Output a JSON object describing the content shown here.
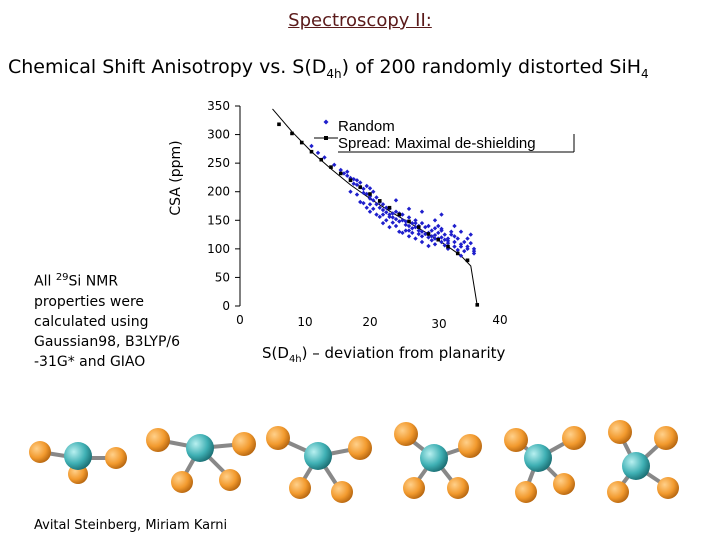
{
  "slide": {
    "title": "Spectroscopy II:",
    "subtitle_pre": "Chemical Shift Anisotropy vs. S(D",
    "subtitle_sub": "4h",
    "subtitle_mid": ") of 200 randomly distorted SiH",
    "subtitle_sub2": "4",
    "note_lines": [
      "All",
      "29",
      "Si NMR",
      "properties were",
      "calculated using",
      "Gaussian98, B3LYP/6",
      "-31G* and GIAO"
    ],
    "xlabel_pre": "S(D",
    "xlabel_sub": "4h",
    "xlabel_post": ") – deviation from planarity",
    "footer": "Avital Steinberg, Miriam Karni"
  },
  "chart_data": {
    "type": "scatter",
    "ylabel": "CSA (ppm)",
    "xlabel": "S(D4h) – deviation from planarity",
    "yticks": [
      0,
      50,
      100,
      150,
      200,
      250,
      300,
      350
    ],
    "xticks": [
      0,
      10,
      20,
      30,
      40
    ],
    "ylim": [
      0,
      350
    ],
    "xlim": [
      0,
      40
    ],
    "grid": false,
    "legend_position": "top-right",
    "colors": {
      "random": "#1f1fcc",
      "maximal": "#000000",
      "axis": "#000000"
    },
    "series": [
      {
        "name": "Random",
        "marker": "diamond",
        "color": "#1f1fcc",
        "points": [
          [
            14.5,
            247
          ],
          [
            15.5,
            238
          ],
          [
            16,
            232
          ],
          [
            16.5,
            235
          ],
          [
            17,
            224
          ],
          [
            17.5,
            222
          ],
          [
            17.5,
            214
          ],
          [
            18,
            220
          ],
          [
            18,
            212
          ],
          [
            18.5,
            208
          ],
          [
            18.5,
            216
          ],
          [
            19,
            205
          ],
          [
            19,
            198
          ],
          [
            19.5,
            210
          ],
          [
            19.5,
            196
          ],
          [
            20,
            206
          ],
          [
            20,
            192
          ],
          [
            20,
            188
          ],
          [
            20.5,
            200
          ],
          [
            20.5,
            185
          ],
          [
            21,
            178
          ],
          [
            21,
            190
          ],
          [
            21.5,
            182
          ],
          [
            21.5,
            172
          ],
          [
            22,
            178
          ],
          [
            22,
            168
          ],
          [
            22.5,
            172
          ],
          [
            22.5,
            164
          ],
          [
            23,
            170
          ],
          [
            23,
            160
          ],
          [
            23.5,
            162
          ],
          [
            23.5,
            155
          ],
          [
            24,
            165
          ],
          [
            24,
            152
          ],
          [
            24.5,
            158
          ],
          [
            24.5,
            148
          ],
          [
            25,
            160
          ],
          [
            25,
            150
          ],
          [
            25.5,
            148
          ],
          [
            25.5,
            142
          ],
          [
            26,
            155
          ],
          [
            26,
            140
          ],
          [
            26.5,
            145
          ],
          [
            26.5,
            136
          ],
          [
            27,
            150
          ],
          [
            27,
            138
          ],
          [
            27.5,
            140
          ],
          [
            27.5,
            132
          ],
          [
            28,
            145
          ],
          [
            28,
            130
          ],
          [
            28.5,
            138
          ],
          [
            28.5,
            126
          ],
          [
            29,
            140
          ],
          [
            29,
            128
          ],
          [
            29.5,
            132
          ],
          [
            29.5,
            122
          ],
          [
            30,
            136
          ],
          [
            30,
            124
          ],
          [
            30.5,
            128
          ],
          [
            30.5,
            118
          ],
          [
            31,
            132
          ],
          [
            31,
            120
          ],
          [
            31.5,
            125
          ],
          [
            31.5,
            116
          ],
          [
            32,
            118
          ],
          [
            32,
            110
          ],
          [
            32.5,
            125
          ],
          [
            33,
            112
          ],
          [
            33,
            104
          ],
          [
            33.5,
            118
          ],
          [
            34,
            108
          ],
          [
            34.5,
            112
          ],
          [
            35,
            104
          ],
          [
            35.5,
            110
          ],
          [
            36,
            100
          ],
          [
            24,
            185
          ],
          [
            26,
            170
          ],
          [
            28,
            165
          ],
          [
            31,
            160
          ],
          [
            33,
            140
          ],
          [
            34,
            130
          ],
          [
            35.5,
            125
          ],
          [
            29,
            105
          ],
          [
            31,
            112
          ],
          [
            26,
            122
          ],
          [
            24.5,
            130
          ],
          [
            23,
            138
          ],
          [
            22,
            145
          ],
          [
            27,
            118
          ],
          [
            25,
            128
          ],
          [
            30,
            150
          ],
          [
            32.5,
            130
          ],
          [
            21,
            160
          ],
          [
            19.5,
            172
          ],
          [
            22.5,
            150
          ],
          [
            20,
            165
          ],
          [
            18.5,
            182
          ],
          [
            17,
            200
          ],
          [
            28,
            112
          ],
          [
            30,
            108
          ],
          [
            33,
            122
          ],
          [
            35,
            118
          ],
          [
            29.5,
            115
          ],
          [
            27.5,
            126
          ],
          [
            25.5,
            132
          ],
          [
            23.5,
            146
          ],
          [
            21.5,
            156
          ],
          [
            20.5,
            170
          ],
          [
            19,
            180
          ],
          [
            33.5,
            98
          ],
          [
            34.5,
            96
          ],
          [
            36,
            92
          ],
          [
            31.5,
            106
          ],
          [
            32,
            100
          ],
          [
            34,
            88
          ],
          [
            16.5,
            228
          ],
          [
            18,
            195
          ],
          [
            24.5,
            162
          ],
          [
            27,
            145
          ],
          [
            30.5,
            140
          ],
          [
            12,
            268
          ],
          [
            13,
            260
          ],
          [
            11,
            280
          ],
          [
            31,
            135
          ],
          [
            29,
            120
          ],
          [
            26.5,
            128
          ],
          [
            23,
            156
          ],
          [
            20,
            178
          ],
          [
            22,
            160
          ],
          [
            24,
            140
          ],
          [
            26,
            132
          ],
          [
            28,
            122
          ],
          [
            30,
            118
          ],
          [
            32,
            114
          ],
          [
            34,
            104
          ],
          [
            35,
            100
          ],
          [
            36,
            96
          ]
        ]
      },
      {
        "name": "Spread: Maximal de-shielding",
        "marker": "square",
        "color": "#000000",
        "points": [
          [
            6,
            318
          ],
          [
            8,
            302
          ],
          [
            9.5,
            286
          ],
          [
            11,
            270
          ],
          [
            12.5,
            256
          ],
          [
            14,
            243
          ],
          [
            15.5,
            232
          ],
          [
            17,
            220
          ],
          [
            18.5,
            208
          ],
          [
            20,
            196
          ],
          [
            21.5,
            184
          ],
          [
            23,
            172
          ],
          [
            24.5,
            160
          ],
          [
            26,
            148
          ],
          [
            27.5,
            138
          ],
          [
            29,
            126
          ],
          [
            30.5,
            116
          ],
          [
            32,
            104
          ],
          [
            33.5,
            92
          ],
          [
            35,
            80
          ],
          [
            36.5,
            2
          ]
        ]
      }
    ],
    "fit_curve": {
      "color": "#000000",
      "points": [
        [
          5,
          345
        ],
        [
          8,
          305
        ],
        [
          11,
          270
        ],
        [
          14,
          240
        ],
        [
          17,
          212
        ],
        [
          20,
          188
        ],
        [
          23,
          166
        ],
        [
          26,
          146
        ],
        [
          29,
          126
        ],
        [
          32,
          104
        ],
        [
          34,
          88
        ],
        [
          35.5,
          70
        ],
        [
          36.5,
          0
        ]
      ]
    }
  },
  "molecules": [
    {
      "name": "molecule-1"
    },
    {
      "name": "molecule-2"
    },
    {
      "name": "molecule-3"
    },
    {
      "name": "molecule-4"
    },
    {
      "name": "molecule-5"
    },
    {
      "name": "molecule-6"
    }
  ]
}
